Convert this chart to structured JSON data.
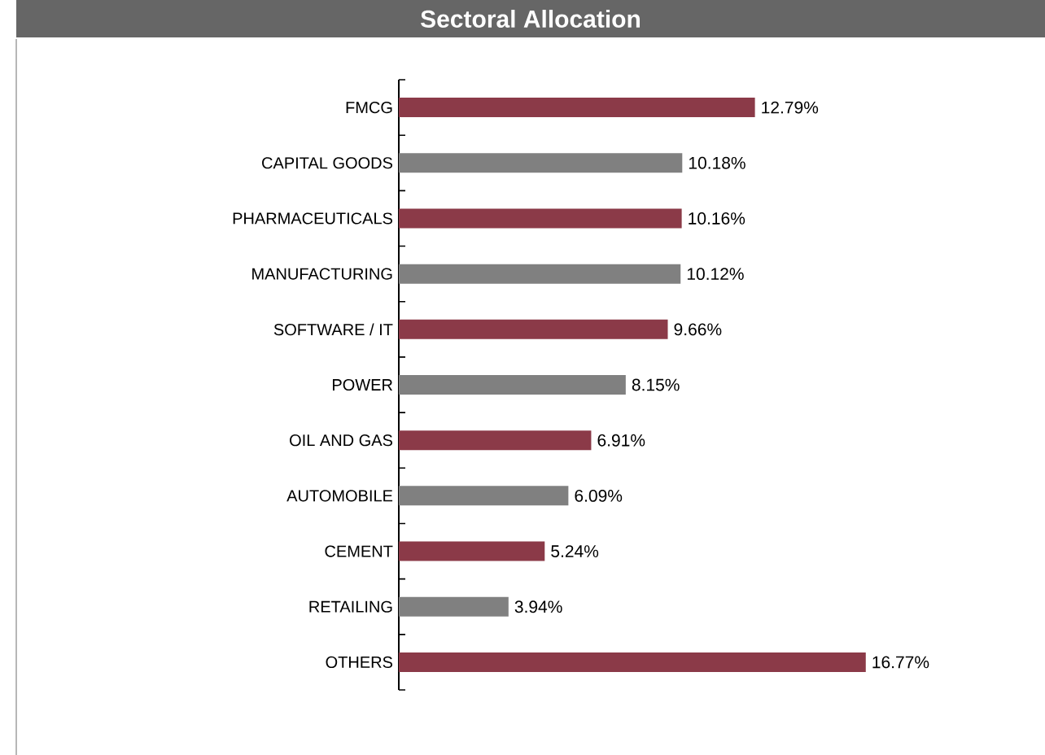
{
  "chart_data": {
    "type": "bar",
    "orientation": "horizontal",
    "title": "Sectoral Allocation",
    "categories": [
      "FMCG",
      "CAPITAL GOODS",
      "PHARMACEUTICALS",
      "MANUFACTURING",
      "SOFTWARE / IT",
      "POWER",
      "OIL AND GAS",
      "AUTOMOBILE",
      "CEMENT",
      "RETAILING",
      "OTHERS"
    ],
    "values": [
      12.79,
      10.18,
      10.16,
      10.12,
      9.66,
      8.15,
      6.91,
      6.09,
      5.24,
      3.94,
      16.77
    ],
    "value_labels": [
      "12.79%",
      "10.18%",
      "10.16%",
      "10.12%",
      "9.66%",
      "8.15%",
      "6.91%",
      "6.09%",
      "5.24%",
      "3.94%",
      "16.77%"
    ],
    "colors": [
      "#8b3a48",
      "#808080",
      "#8b3a48",
      "#808080",
      "#8b3a48",
      "#808080",
      "#8b3a48",
      "#808080",
      "#8b3a48",
      "#808080",
      "#8b3a48"
    ]
  }
}
